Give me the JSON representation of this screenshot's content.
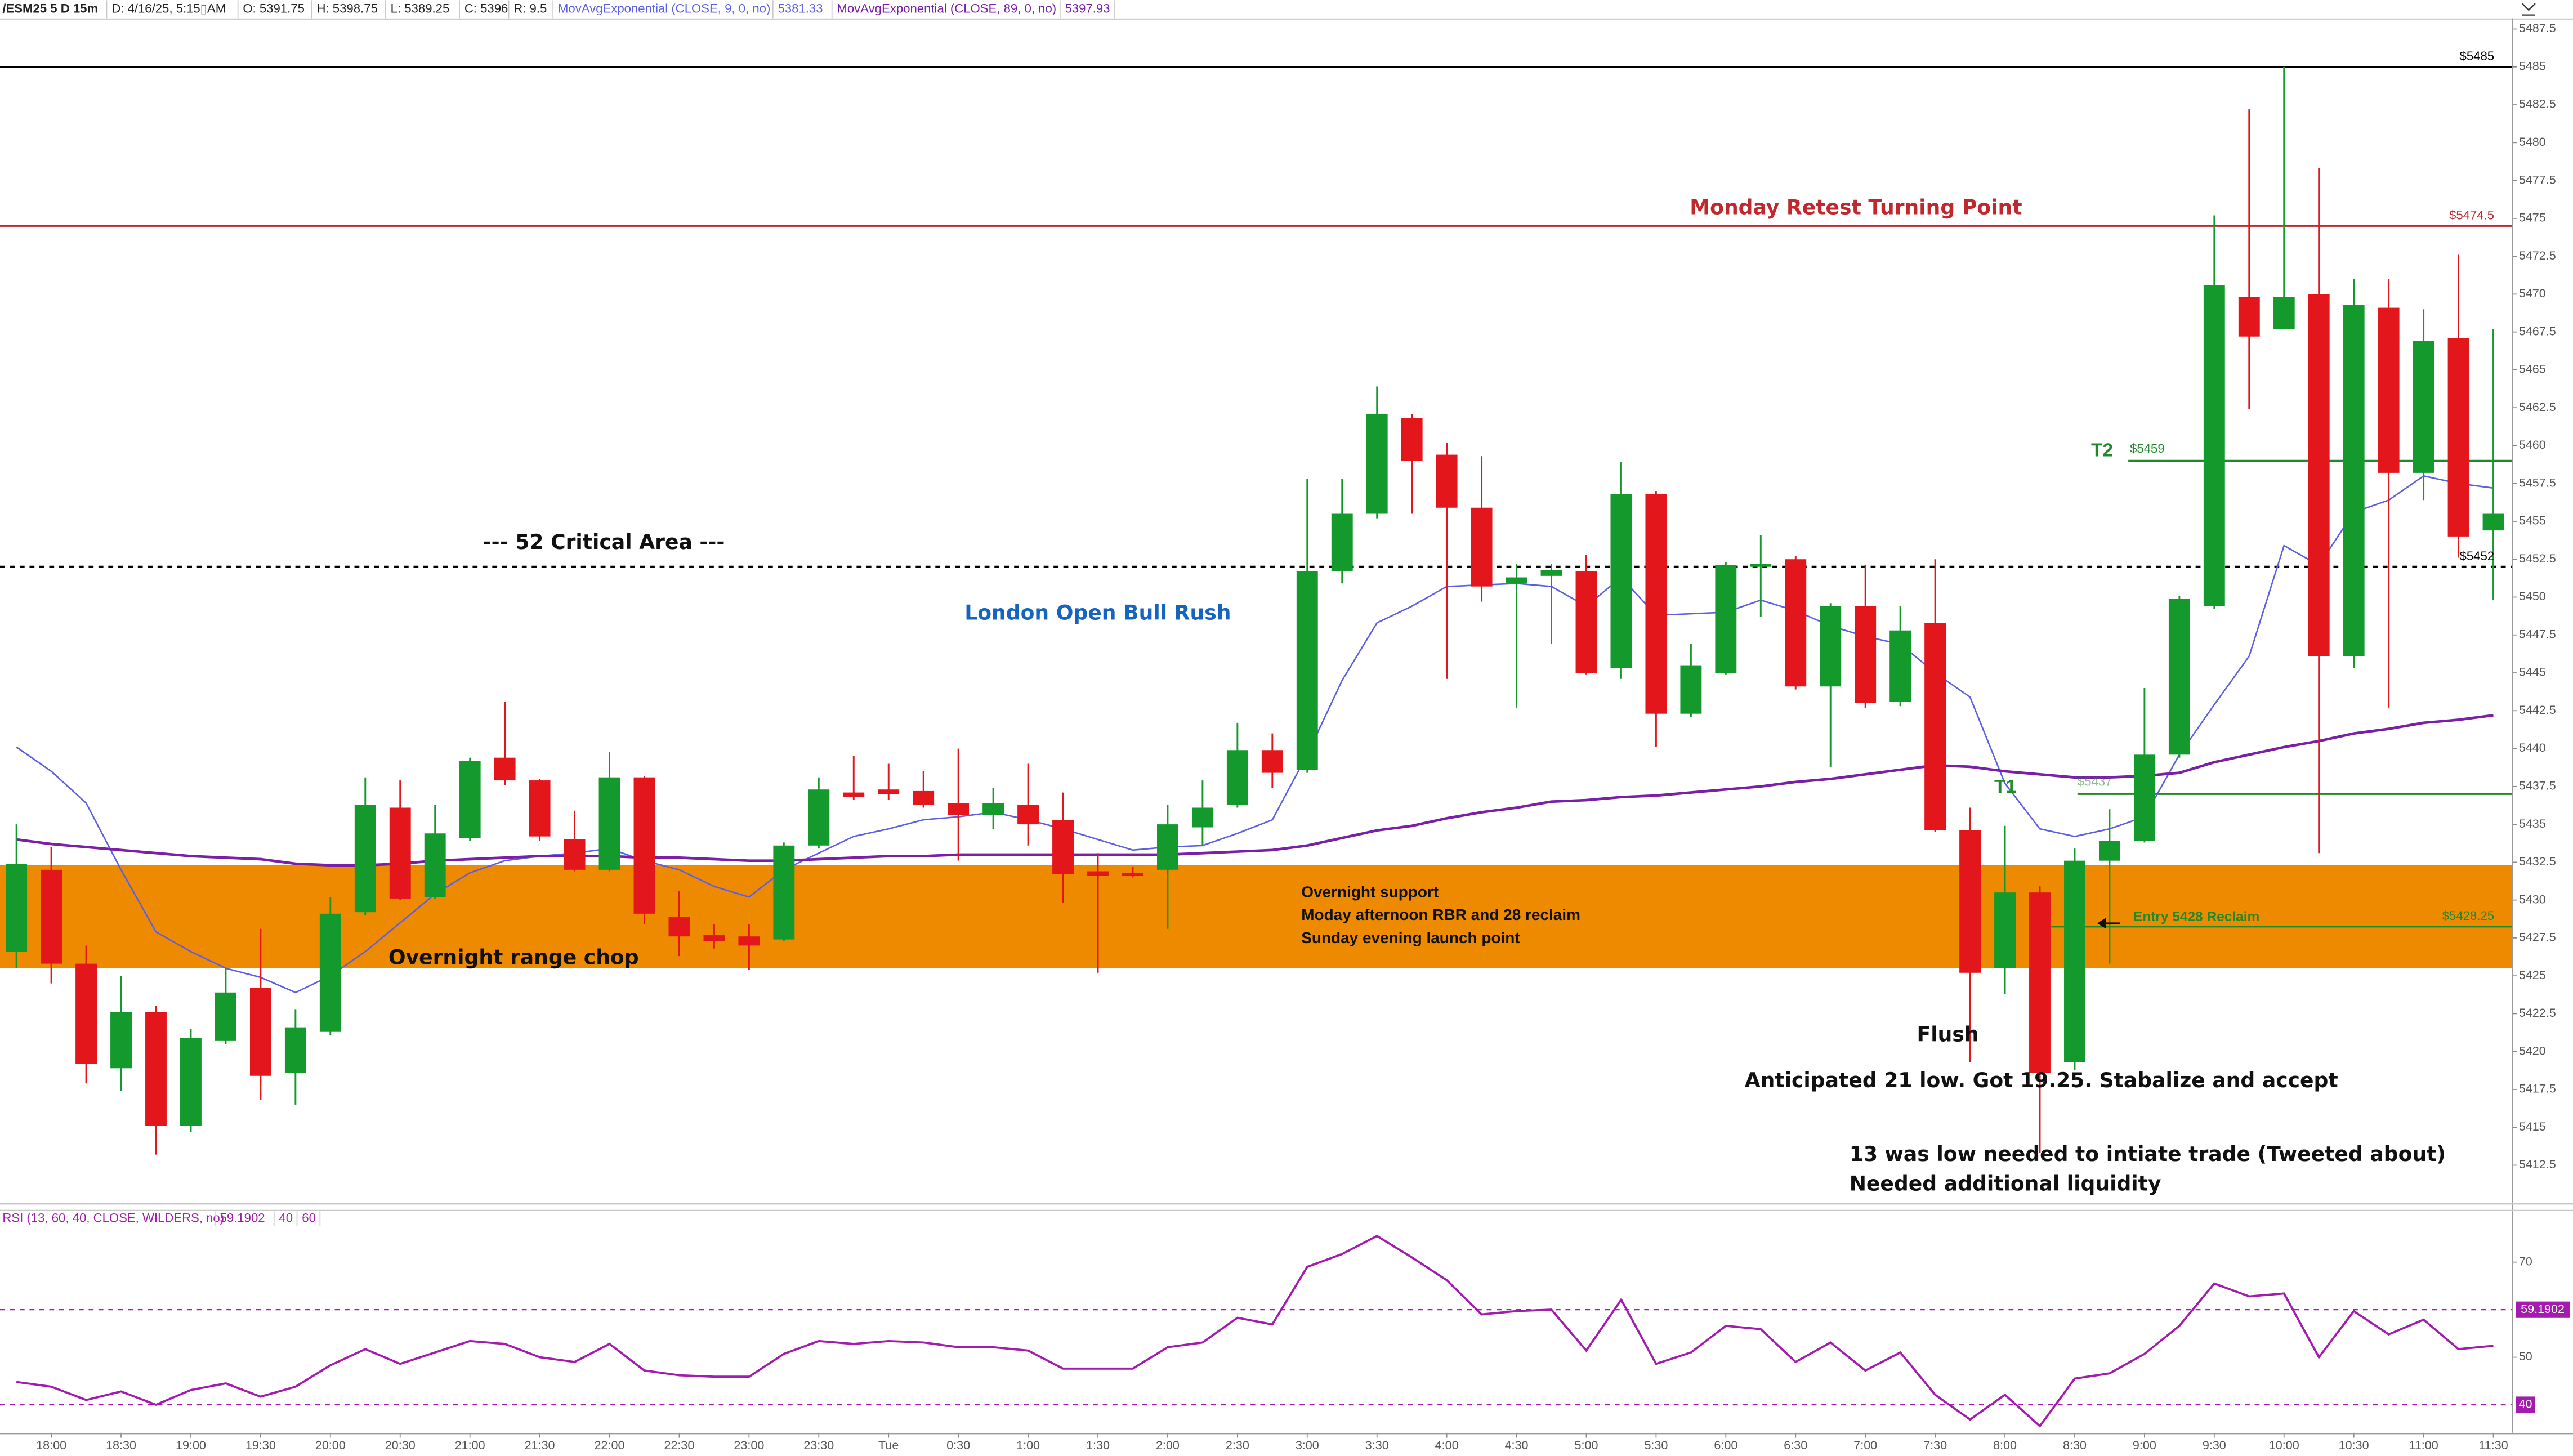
{
  "chart_data": [
    {
      "type": "candlestick",
      "title": "/ESM25 5 D 15m",
      "info": [
        "D: 4/16/25, 5:15▯AM",
        "O: 5391.75",
        "H: 5398.75",
        "L: 5389.25",
        "C: 5396",
        "R: 9.5"
      ],
      "categories": [
        null,
        "18:00",
        null,
        "18:30",
        null,
        "19:00",
        null,
        "19:30",
        null,
        "20:00",
        null,
        "20:30",
        null,
        "21:00",
        null,
        "21:30",
        null,
        "22:00",
        null,
        "22:30",
        null,
        "23:00",
        null,
        "23:30",
        null,
        "Tue",
        null,
        "0:30",
        null,
        "1:00",
        null,
        "1:30",
        null,
        "2:00",
        null,
        "2:30",
        null,
        "3:00",
        null,
        "3:30",
        null,
        "4:00",
        null,
        "4:30",
        null,
        "5:00",
        null,
        "5:30",
        null,
        "6:00",
        null,
        "6:30",
        null,
        "7:00",
        null,
        "7:30",
        null,
        "8:00",
        null,
        "8:30",
        null,
        "9:00",
        null,
        "9:30",
        null,
        "10:00",
        null,
        "10:30",
        null,
        "11:00",
        null,
        "11:30"
      ],
      "open": [
        5426.6,
        5432.0,
        5425.8,
        5418.9,
        5422.6,
        5415.1,
        5420.7,
        5424.2,
        5418.6,
        5421.3,
        5429.2,
        5436.1,
        5430.2,
        5434.1,
        5439.4,
        5437.9,
        5434.0,
        5432.0,
        5438.1,
        5428.9,
        5427.7,
        5427.6,
        5427.4,
        5433.6,
        5437.1,
        5437.3,
        5437.2,
        5436.4,
        5435.6,
        5436.3,
        5435.3,
        5431.9,
        5431.8,
        5432.0,
        5434.8,
        5436.3,
        5439.9,
        5438.6,
        5451.7,
        5455.5,
        5461.8,
        5459.4,
        5455.9,
        5450.9,
        5451.4,
        5451.7,
        5445.3,
        5456.8,
        5442.3,
        5445.0,
        5452.0,
        5452.5,
        5444.1,
        5449.4,
        5443.1,
        5448.3,
        5434.6,
        5425.5,
        5430.5,
        5419.3,
        5432.6,
        5433.9,
        5439.6,
        5449.4,
        5469.8,
        5467.7,
        5470.0,
        5446.1,
        5469.1,
        5458.2,
        5467.1,
        5454.4
      ],
      "high": [
        5435.0,
        5433.5,
        5427.0,
        5425.0,
        5423.0,
        5421.5,
        5425.5,
        5428.1,
        5422.8,
        5430.2,
        5438.1,
        5437.9,
        5436.3,
        5439.4,
        5443.1,
        5438.0,
        5435.9,
        5439.8,
        5438.2,
        5430.6,
        5428.4,
        5428.4,
        5433.8,
        5438.1,
        5439.5,
        5439.0,
        5438.5,
        5440.0,
        5437.4,
        5439.0,
        5437.1,
        5433.1,
        5432.2,
        5436.3,
        5437.9,
        5441.7,
        5441.0,
        5457.8,
        5457.8,
        5463.9,
        5462.1,
        5460.2,
        5459.3,
        5452.2,
        5452.2,
        5452.8,
        5458.9,
        5457.0,
        5446.9,
        5452.3,
        5454.1,
        5452.7,
        5449.6,
        5452.1,
        5449.4,
        5452.5,
        5436.1,
        5434.9,
        5430.9,
        5433.4,
        5436.0,
        5444.0,
        5450.1,
        5475.2,
        5482.2,
        5485.0,
        5478.3,
        5471.0,
        5471.0,
        5469.0,
        5472.6,
        5467.7
      ],
      "low": [
        5425.5,
        5424.5,
        5417.9,
        5417.4,
        5413.2,
        5414.7,
        5420.5,
        5416.8,
        5416.5,
        5421.1,
        5429.0,
        5430.0,
        5430.1,
        5433.9,
        5437.6,
        5433.9,
        5431.9,
        5431.9,
        5428.4,
        5426.3,
        5426.8,
        5425.4,
        5427.3,
        5433.4,
        5436.6,
        5436.6,
        5436.1,
        5432.6,
        5434.7,
        5433.6,
        5429.8,
        5425.2,
        5431.5,
        5428.1,
        5433.6,
        5436.1,
        5437.4,
        5438.4,
        5450.9,
        5455.2,
        5455.5,
        5444.6,
        5449.7,
        5442.7,
        5446.9,
        5444.9,
        5444.6,
        5440.1,
        5442.1,
        5444.9,
        5448.7,
        5443.9,
        5438.8,
        5442.7,
        5442.8,
        5434.5,
        5419.3,
        5423.8,
        5413.3,
        5418.8,
        5425.8,
        5433.8,
        5439.4,
        5449.2,
        5462.4,
        5467.7,
        5433.1,
        5445.3,
        5442.7,
        5456.4,
        5452.6,
        5449.8
      ],
      "close": [
        5432.4,
        5425.8,
        5419.2,
        5422.6,
        5415.1,
        5420.9,
        5423.9,
        5418.4,
        5421.6,
        5429.1,
        5436.3,
        5430.1,
        5434.4,
        5439.2,
        5437.9,
        5434.2,
        5432.0,
        5438.1,
        5429.1,
        5427.6,
        5427.3,
        5427.0,
        5433.6,
        5437.3,
        5436.8,
        5437.0,
        5436.3,
        5435.6,
        5436.4,
        5435.0,
        5431.7,
        5431.6,
        5431.6,
        5435.0,
        5436.1,
        5439.9,
        5438.4,
        5451.7,
        5455.5,
        5462.1,
        5459.0,
        5455.9,
        5450.7,
        5451.3,
        5451.8,
        5445.0,
        5456.8,
        5442.3,
        5445.5,
        5452.1,
        5452.2,
        5444.1,
        5449.4,
        5443.0,
        5447.8,
        5434.6,
        5425.2,
        5430.5,
        5418.6,
        5432.6,
        5433.9,
        5439.6,
        5449.9,
        5470.6,
        5467.2,
        5469.8,
        5446.1,
        5469.3,
        5458.2,
        5466.9,
        5454.0,
        5455.5
      ],
      "up_color": "#149a2c",
      "down_color": "#e3161c",
      "series": [
        {
          "name": "MovAvgExponential (CLOSE, 9, 0, no)",
          "last": "5381.33",
          "color": "#5b5fe3",
          "values": [
            5440.1,
            5438.5,
            5436.4,
            5432.0,
            5427.9,
            5426.6,
            5425.5,
            5424.9,
            5423.9,
            5425.0,
            5426.6,
            5428.5,
            5430.4,
            5431.8,
            5432.6,
            5432.9,
            5433.1,
            5433.4,
            5432.6,
            5432.0,
            5430.9,
            5430.2,
            5432.0,
            5433.1,
            5434.2,
            5434.7,
            5435.3,
            5435.5,
            5435.8,
            5435.3,
            5434.7,
            5434.0,
            5433.3,
            5433.5,
            5433.6,
            5434.4,
            5435.3,
            5439.6,
            5444.5,
            5448.3,
            5449.4,
            5450.7,
            5450.8,
            5450.9,
            5450.7,
            5449.4,
            5451.3,
            5448.8,
            5448.9,
            5449.0,
            5449.8,
            5449.1,
            5448.1,
            5447.4,
            5446.9,
            5445.0,
            5443.4,
            5437.7,
            5434.7,
            5434.2,
            5434.7,
            5435.5,
            5439.6,
            5442.9,
            5446.1,
            5453.4,
            5452.1,
            5455.6,
            5456.4,
            5458.0,
            5457.5,
            5457.2
          ]
        },
        {
          "name": "MovAvgExponential (CLOSE, 89, 0, no)",
          "last": "5397.93",
          "color": "#7a1fa8",
          "values": [
            5434.0,
            5433.7,
            5433.5,
            5433.3,
            5433.1,
            5432.9,
            5432.8,
            5432.7,
            5432.4,
            5432.3,
            5432.3,
            5432.4,
            5432.6,
            5432.7,
            5432.8,
            5432.9,
            5432.9,
            5432.9,
            5432.8,
            5432.8,
            5432.7,
            5432.6,
            5432.6,
            5432.7,
            5432.8,
            5432.9,
            5432.9,
            5433.0,
            5433.0,
            5433.0,
            5433.0,
            5433.0,
            5433.0,
            5433.0,
            5433.1,
            5433.2,
            5433.3,
            5433.6,
            5434.1,
            5434.6,
            5434.9,
            5435.4,
            5435.8,
            5436.1,
            5436.5,
            5436.6,
            5436.8,
            5436.9,
            5437.1,
            5437.3,
            5437.5,
            5437.8,
            5438.0,
            5438.3,
            5438.6,
            5438.9,
            5438.8,
            5438.5,
            5438.3,
            5438.1,
            5438.1,
            5438.2,
            5438.4,
            5439.1,
            5439.6,
            5440.1,
            5440.5,
            5441.0,
            5441.3,
            5441.7,
            5441.9,
            5442.2
          ]
        }
      ],
      "ylim": [
        5410,
        5488.1
      ],
      "yticks": [
        5412.5,
        5415,
        5417.5,
        5420,
        5422.5,
        5425,
        5427.5,
        5430,
        5432.5,
        5435,
        5437.5,
        5440,
        5442.5,
        5445,
        5447.5,
        5450,
        5452.5,
        5455,
        5457.5,
        5460,
        5462.5,
        5465,
        5467.5,
        5470,
        5472.5,
        5475,
        5477.5,
        5480,
        5482.5,
        5485,
        5487.5
      ],
      "levels": [
        {
          "value": 5485,
          "label": "$5485",
          "color": "#000000"
        },
        {
          "value": 5474.5,
          "label": "$5474.5",
          "color": "#c0282d",
          "text": "Monday Retest Turning Point"
        },
        {
          "value": 5452,
          "label": "$5452",
          "color": "#000000",
          "dashed": true,
          "text": "--- 52 Critical Area ---"
        },
        {
          "value": 5459,
          "label": "$5459",
          "color": "#1f8a2a",
          "tag": "T2"
        },
        {
          "value": 5437,
          "label": "$5437",
          "color": "#1f8a2a",
          "tag": "T1"
        },
        {
          "value": 5428.25,
          "label": "$5428.25",
          "color": "#1f8a2a",
          "tag": "Entry 5428 Reclaim"
        }
      ],
      "zone": {
        "low": 5425.5,
        "high": 5432.3,
        "color": "#ee8a00",
        "lines": [
          "Overnight support",
          "Moday afternoon RBR and 28 reclaim",
          "Sunday evening launch point"
        ]
      },
      "annotations": [
        {
          "text": "London Open Bull Rush",
          "color": "#1565c0"
        },
        {
          "text": "Overnight range chop",
          "color": "#111111"
        },
        {
          "text": "Flush",
          "color": "#111111"
        },
        {
          "text": "Anticipated 21 low. Got 19.25. Stabalize and accept",
          "color": "#111111"
        },
        {
          "text": "13 was low needed to intiate trade (Tweeted about)",
          "color": "#111111"
        },
        {
          "text": "Needed additional liquidity",
          "color": "#111111"
        }
      ]
    },
    {
      "type": "line",
      "title": "RSI (13, 60, 40, CLOSE, WILDERS, no)",
      "last_label": "59.1902",
      "color": "#a31cae",
      "values": [
        44.8,
        43.8,
        41.0,
        42.8,
        40.0,
        43.1,
        44.5,
        41.7,
        43.8,
        48.3,
        51.7,
        48.6,
        51.0,
        53.4,
        52.8,
        50.0,
        49.0,
        52.8,
        47.2,
        46.2,
        45.9,
        45.9,
        50.7,
        53.4,
        52.8,
        53.4,
        53.1,
        52.1,
        52.1,
        51.4,
        47.6,
        47.6,
        47.6,
        52.1,
        53.1,
        58.3,
        56.9,
        69.0,
        71.7,
        75.5,
        71.0,
        66.2,
        59.0,
        59.7,
        60.0,
        51.4,
        62.1,
        48.6,
        51.0,
        56.6,
        55.9,
        49.0,
        53.1,
        47.2,
        51.0,
        42.1,
        36.9,
        42.1,
        35.5,
        45.5,
        46.6,
        50.7,
        56.6,
        65.5,
        62.8,
        63.4,
        50.0,
        59.7,
        54.8,
        57.9,
        51.7,
        52.4
      ],
      "ylim": [
        34.1,
        80.7
      ],
      "yticks": [
        50,
        70
      ],
      "levels": [
        40,
        60
      ]
    }
  ]
}
